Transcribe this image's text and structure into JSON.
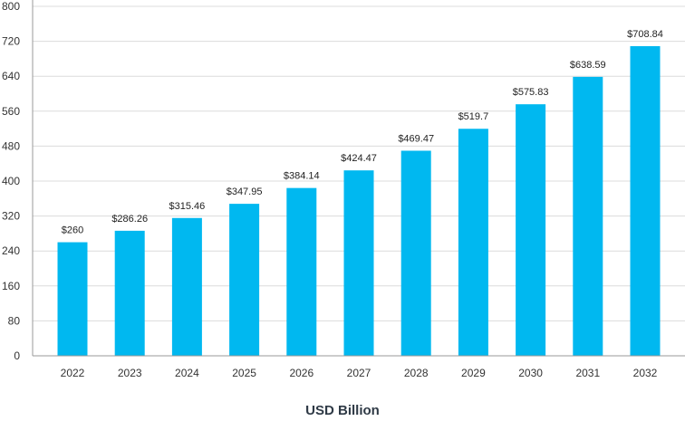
{
  "chart_data": {
    "type": "bar",
    "title": "",
    "xlabel": "USD Billion",
    "ylabel": "",
    "categories": [
      "2022",
      "2023",
      "2024",
      "2025",
      "2026",
      "2027",
      "2028",
      "2029",
      "2030",
      "2031",
      "2032"
    ],
    "values": [
      260,
      286.26,
      315.46,
      347.95,
      384.14,
      424.47,
      469.47,
      519.7,
      575.83,
      638.59,
      708.84
    ],
    "data_labels": [
      "$260",
      "$286.26",
      "$315.46",
      "$347.95",
      "$384.14",
      "$424.47",
      "$469.47",
      "$519.7",
      "$575.83",
      "$638.59",
      "$708.84"
    ],
    "ylim": [
      0,
      800
    ],
    "yticks": [
      0,
      80,
      160,
      240,
      320,
      400,
      480,
      560,
      640,
      720,
      800
    ],
    "ytick_labels": [
      "0",
      "80",
      "160",
      "240",
      "320",
      "400",
      "480",
      "560",
      "640",
      "720",
      "800"
    ],
    "grid": true,
    "legend": "none",
    "bar_color": "#00b8f0"
  }
}
